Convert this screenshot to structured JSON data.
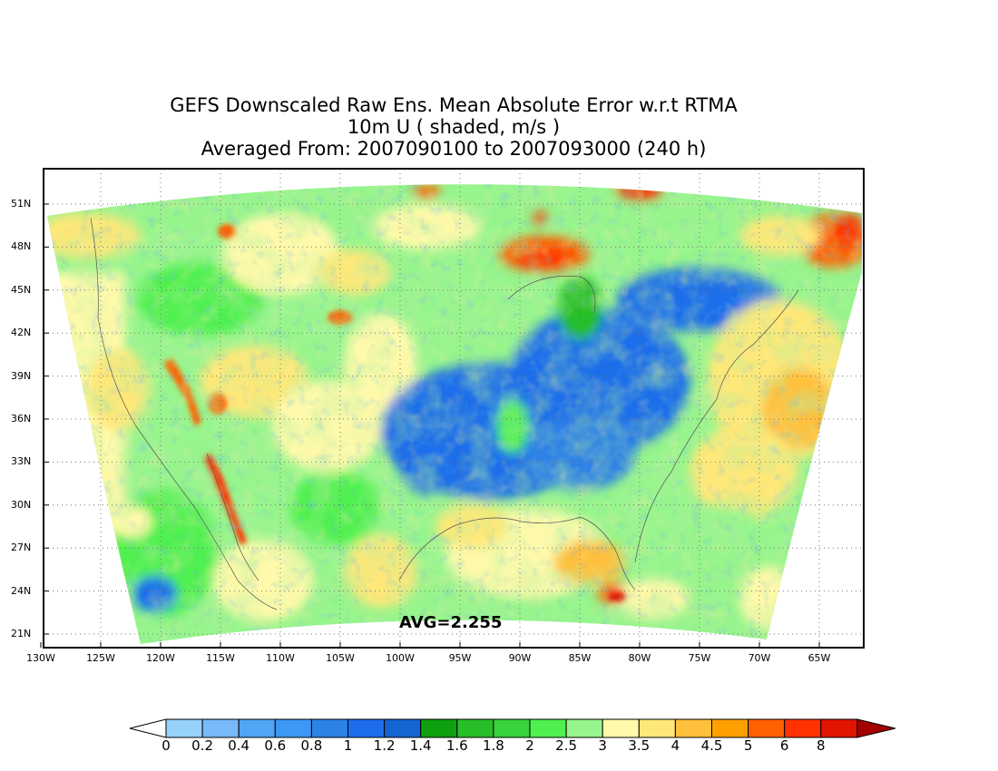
{
  "title": {
    "line1": "GEFS Downscaled Raw Ens. Mean Absolute Error w.r.t RTMA",
    "line2": "10m U ( shaded, m/s )",
    "line3": "Averaged From: 2007090100 to 2007093000 (240 h)"
  },
  "map": {
    "avg_label": "AVG=2.255",
    "lat_labels": [
      "51N",
      "48N",
      "45N",
      "42N",
      "39N",
      "36N",
      "33N",
      "30N",
      "27N",
      "24N",
      "21N"
    ],
    "lon_labels": [
      "130W",
      "125W",
      "120W",
      "115W",
      "110W",
      "105W",
      "100W",
      "95W",
      "90W",
      "85W",
      "80W",
      "75W",
      "70W",
      "65W"
    ]
  },
  "colorbar": {
    "labels": [
      "0",
      "0.2",
      "0.4",
      "0.6",
      "0.8",
      "1",
      "1.2",
      "1.4",
      "1.6",
      "1.8",
      "2",
      "2.5",
      "3",
      "3.5",
      "4",
      "4.5",
      "5",
      "6",
      "8"
    ],
    "colors": [
      "#96d2fa",
      "#78b9fa",
      "#50a5f5",
      "#3c97f5",
      "#2d82e6",
      "#1e6eeb",
      "#1464d2",
      "#0fa00f",
      "#28be28",
      "#37d23c",
      "#50f050",
      "#96f58c",
      "#fffaaa",
      "#ffe878",
      "#ffc03c",
      "#ffa000",
      "#ff6000",
      "#ff3200",
      "#e11400",
      "#a50000"
    ],
    "under_color": "#ffffff"
  }
}
